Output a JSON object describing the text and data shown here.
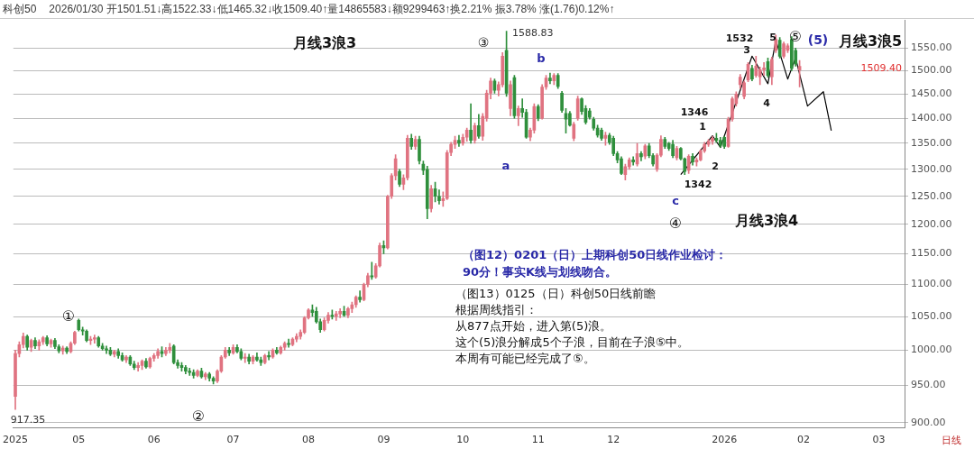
{
  "chart_data": {
    "type": "candlestick",
    "title": "科创50",
    "subtitle": "2026/01/30 开1501.51↓高1522.33↓低1465.32↓收1509.40↑量14865583↓额9299463↑换2.21% 振3.78% 涨(1.76)0.12%↑",
    "categories": [
      "2025",
      null,
      null,
      null,
      null,
      null,
      null,
      null,
      null,
      null,
      null,
      null,
      null,
      null,
      null,
      null,
      "05",
      null,
      null,
      null,
      null,
      null,
      null,
      null,
      null,
      null,
      null,
      null,
      null,
      null,
      null,
      null,
      null,
      null,
      null,
      "06",
      null,
      null,
      null,
      null,
      null,
      null,
      null,
      null,
      null,
      null,
      null,
      null,
      null,
      null,
      null,
      null,
      null,
      null,
      null,
      "07",
      null,
      null,
      null,
      null,
      null,
      null,
      null,
      null,
      null,
      null,
      null,
      null,
      null,
      null,
      null,
      null,
      null,
      null,
      "08",
      null,
      null,
      null,
      null,
      null,
      null,
      null,
      null,
      null,
      null,
      null,
      null,
      null,
      null,
      null,
      null,
      null,
      null,
      "09",
      null,
      null,
      null,
      null,
      null,
      null,
      null,
      null,
      null,
      null,
      null,
      null,
      null,
      null,
      null,
      null,
      null,
      null,
      null,
      "10",
      null,
      null,
      null,
      null,
      null,
      null,
      null,
      null,
      null,
      null,
      null,
      null,
      null,
      null,
      null,
      null,
      null,
      null,
      "11",
      null,
      null,
      null,
      null,
      null,
      null,
      null,
      null,
      null,
      null,
      null,
      null,
      null,
      null,
      null,
      null,
      null,
      null,
      "12",
      null,
      null,
      null,
      null,
      null,
      null,
      null,
      null,
      null,
      null,
      null,
      null,
      null,
      null,
      null,
      null,
      null,
      null,
      null,
      null,
      null,
      null,
      null,
      null,
      null,
      null,
      null,
      "2026",
      null,
      null,
      null,
      null,
      null,
      null,
      null,
      null,
      null,
      null,
      null,
      null,
      null,
      null,
      null,
      null,
      null,
      null,
      null,
      "02",
      null,
      null,
      null,
      null,
      null,
      null,
      null,
      null,
      null,
      null,
      null,
      null,
      null,
      null,
      null,
      null,
      null,
      null,
      "03",
      null,
      null,
      null,
      null,
      null,
      null
    ],
    "ohlc": [
      [
        935,
        1000,
        917.35,
        995
      ],
      [
        995,
        1012,
        990,
        1008
      ],
      [
        1008,
        1025,
        1003,
        1020
      ],
      [
        1020,
        1022,
        1000,
        1004
      ],
      [
        1004,
        1016,
        998,
        1014
      ],
      [
        1014,
        1018,
        1002,
        1006
      ],
      [
        1006,
        1015,
        1000,
        1012
      ],
      [
        1012,
        1020,
        1008,
        1018
      ],
      [
        1018,
        1021,
        1006,
        1009
      ],
      [
        1009,
        1016,
        1004,
        1014
      ],
      [
        1014,
        1017,
        1002,
        1005
      ],
      [
        1005,
        1008,
        996,
        999
      ],
      [
        999,
        1006,
        994,
        1003
      ],
      [
        1003,
        1005,
        995,
        998
      ],
      [
        998,
        1012,
        996,
        1010
      ],
      [
        1010,
        1028,
        1008,
        1026
      ],
      [
        1044,
        1046,
        1028,
        1030
      ],
      [
        1030,
        1034,
        1022,
        1028
      ],
      [
        1028,
        1030,
        1012,
        1014
      ],
      [
        1014,
        1020,
        1008,
        1016
      ],
      [
        1016,
        1022,
        1010,
        1018
      ],
      [
        1018,
        1020,
        1004,
        1006
      ],
      [
        1006,
        1010,
        1000,
        1002
      ],
      [
        1002,
        1006,
        995,
        1000
      ],
      [
        1000,
        1004,
        992,
        994
      ],
      [
        994,
        1000,
        990,
        998
      ],
      [
        998,
        1002,
        988,
        992
      ],
      [
        992,
        996,
        984,
        986
      ],
      [
        986,
        992,
        982,
        990
      ],
      [
        990,
        992,
        978,
        980
      ],
      [
        980,
        984,
        972,
        975
      ],
      [
        975,
        982,
        970,
        978
      ],
      [
        978,
        986,
        972,
        984
      ],
      [
        984,
        988,
        974,
        976
      ],
      [
        976,
        990,
        974,
        988
      ],
      [
        988,
        995,
        984,
        992
      ],
      [
        992,
        1002,
        988,
        998
      ],
      [
        998,
        1005,
        990,
        995
      ],
      [
        995,
        1004,
        992,
        1000
      ],
      [
        1000,
        1010,
        996,
        1004
      ],
      [
        1006,
        1008,
        980,
        982
      ],
      [
        982,
        986,
        974,
        978
      ],
      [
        978,
        982,
        970,
        975
      ],
      [
        975,
        978,
        966,
        970
      ],
      [
        970,
        974,
        964,
        968
      ],
      [
        968,
        972,
        960,
        964
      ],
      [
        964,
        972,
        962,
        970
      ],
      [
        970,
        974,
        960,
        962
      ],
      [
        962,
        968,
        958,
        966
      ],
      [
        966,
        968,
        956,
        960
      ],
      [
        960,
        962,
        952,
        956
      ],
      [
        956,
        972,
        954,
        970
      ],
      [
        970,
        992,
        968,
        990
      ],
      [
        990,
        1004,
        988,
        1000
      ],
      [
        1000,
        1004,
        992,
        996
      ],
      [
        996,
        1008,
        994,
        1004
      ],
      [
        1004,
        1008,
        996,
        998
      ],
      [
        998,
        1002,
        986,
        988
      ],
      [
        988,
        995,
        982,
        990
      ],
      [
        990,
        994,
        980,
        984
      ],
      [
        984,
        992,
        980,
        990
      ],
      [
        990,
        996,
        984,
        986
      ],
      [
        986,
        990,
        978,
        982
      ],
      [
        982,
        994,
        980,
        992
      ],
      [
        992,
        998,
        986,
        990
      ],
      [
        990,
        1002,
        988,
        1000
      ],
      [
        1000,
        1004,
        994,
        996
      ],
      [
        996,
        1006,
        994,
        1004
      ],
      [
        1004,
        1012,
        1000,
        1010
      ],
      [
        1010,
        1016,
        1004,
        1008
      ],
      [
        1008,
        1018,
        1006,
        1016
      ],
      [
        1016,
        1024,
        1012,
        1020
      ],
      [
        1020,
        1030,
        1016,
        1026
      ],
      [
        1026,
        1050,
        1024,
        1048
      ],
      [
        1048,
        1062,
        1046,
        1060
      ],
      [
        1060,
        1068,
        1050,
        1056
      ],
      [
        1058,
        1064,
        1040,
        1042
      ],
      [
        1042,
        1046,
        1026,
        1030
      ],
      [
        1030,
        1048,
        1028,
        1044
      ],
      [
        1044,
        1056,
        1040,
        1052
      ],
      [
        1052,
        1060,
        1046,
        1050
      ],
      [
        1050,
        1058,
        1044,
        1054
      ],
      [
        1054,
        1062,
        1048,
        1058
      ],
      [
        1058,
        1066,
        1050,
        1052
      ],
      [
        1052,
        1064,
        1048,
        1062
      ],
      [
        1062,
        1072,
        1056,
        1068
      ],
      [
        1068,
        1082,
        1064,
        1080
      ],
      [
        1080,
        1090,
        1072,
        1076
      ],
      [
        1076,
        1102,
        1074,
        1100
      ],
      [
        1100,
        1118,
        1096,
        1114
      ],
      [
        1114,
        1136,
        1108,
        1112
      ],
      [
        1112,
        1134,
        1110,
        1130
      ],
      [
        1130,
        1168,
        1128,
        1164
      ],
      [
        1164,
        1172,
        1150,
        1160
      ],
      [
        1160,
        1252,
        1158,
        1250
      ],
      [
        1250,
        1292,
        1246,
        1288
      ],
      [
        1288,
        1328,
        1280,
        1320
      ],
      [
        1296,
        1300,
        1268,
        1272
      ],
      [
        1272,
        1290,
        1262,
        1284
      ],
      [
        1284,
        1366,
        1280,
        1360
      ],
      [
        1360,
        1368,
        1338,
        1344
      ],
      [
        1344,
        1364,
        1338,
        1358
      ],
      [
        1358,
        1364,
        1310,
        1316
      ],
      [
        1310,
        1316,
        1290,
        1298
      ],
      [
        1300,
        1306,
        1210,
        1228
      ],
      [
        1228,
        1270,
        1222,
        1264
      ],
      [
        1264,
        1276,
        1240,
        1250
      ],
      [
        1250,
        1262,
        1236,
        1242
      ],
      [
        1242,
        1258,
        1232,
        1246
      ],
      [
        1246,
        1336,
        1244,
        1332
      ],
      [
        1332,
        1352,
        1326,
        1348
      ],
      [
        1348,
        1364,
        1340,
        1356
      ],
      [
        1356,
        1366,
        1344,
        1350
      ],
      [
        1350,
        1368,
        1346,
        1362
      ],
      [
        1362,
        1380,
        1354,
        1376
      ],
      [
        1376,
        1430,
        1350,
        1356
      ],
      [
        1356,
        1390,
        1350,
        1385
      ],
      [
        1385,
        1408,
        1360,
        1364
      ],
      [
        1364,
        1410,
        1356,
        1404
      ],
      [
        1400,
        1458,
        1394,
        1452
      ],
      [
        1452,
        1484,
        1440,
        1478
      ],
      [
        1478,
        1482,
        1452,
        1458
      ],
      [
        1458,
        1476,
        1446,
        1470
      ],
      [
        1470,
        1540,
        1465,
        1532
      ],
      [
        1545,
        1588.83,
        1445,
        1452
      ],
      [
        1420,
        1478,
        1405,
        1470
      ],
      [
        1485,
        1490,
        1400,
        1405
      ],
      [
        1405,
        1425,
        1385,
        1420
      ],
      [
        1420,
        1440,
        1402,
        1412
      ],
      [
        1412,
        1418,
        1360,
        1362
      ],
      [
        1362,
        1380,
        1355,
        1376
      ],
      [
        1376,
        1430,
        1370,
        1424
      ],
      [
        1424,
        1428,
        1395,
        1400
      ],
      [
        1400,
        1470,
        1398,
        1465
      ],
      [
        1465,
        1490,
        1460,
        1484
      ],
      [
        1484,
        1495,
        1472,
        1478
      ],
      [
        1478,
        1494,
        1470,
        1490
      ],
      [
        1490,
        1494,
        1462,
        1466
      ],
      [
        1452,
        1456,
        1412,
        1416
      ],
      [
        1410,
        1420,
        1370,
        1398
      ],
      [
        1410,
        1414,
        1384,
        1386
      ],
      [
        1360,
        1392,
        1355,
        1388
      ],
      [
        1400,
        1446,
        1396,
        1440
      ],
      [
        1440,
        1442,
        1408,
        1414
      ],
      [
        1420,
        1426,
        1388,
        1392
      ],
      [
        1415,
        1420,
        1398,
        1402
      ],
      [
        1398,
        1402,
        1376,
        1380
      ],
      [
        1380,
        1386,
        1362,
        1366
      ],
      [
        1376,
        1380,
        1356,
        1360
      ],
      [
        1360,
        1372,
        1346,
        1366
      ],
      [
        1366,
        1370,
        1348,
        1352
      ],
      [
        1360,
        1364,
        1326,
        1330
      ],
      [
        1330,
        1334,
        1312,
        1318
      ],
      [
        1320,
        1324,
        1290,
        1292
      ],
      [
        1290,
        1310,
        1280,
        1305
      ],
      [
        1305,
        1322,
        1300,
        1318
      ],
      [
        1318,
        1324,
        1308,
        1314
      ],
      [
        1310,
        1350,
        1306,
        1330
      ],
      [
        1330,
        1334,
        1316,
        1324
      ],
      [
        1325,
        1348,
        1320,
        1345
      ],
      [
        1345,
        1350,
        1322,
        1326
      ],
      [
        1326,
        1330,
        1306,
        1310
      ],
      [
        1300,
        1330,
        1296,
        1327
      ],
      [
        1327,
        1365,
        1324,
        1358
      ],
      [
        1358,
        1362,
        1340,
        1344
      ],
      [
        1350,
        1352,
        1336,
        1340
      ],
      [
        1348,
        1356,
        1322,
        1326
      ],
      [
        1322,
        1344,
        1318,
        1340
      ],
      [
        1340,
        1342,
        1318,
        1320
      ],
      [
        1320,
        1322,
        1290,
        1296
      ],
      [
        1298,
        1328,
        1292,
        1325
      ],
      [
        1325,
        1330,
        1308,
        1314
      ],
      [
        1314,
        1322,
        1306,
        1318
      ],
      [
        1318,
        1338,
        1316,
        1335
      ],
      [
        1335,
        1352,
        1332,
        1348
      ],
      [
        1348,
        1358,
        1344,
        1354
      ],
      [
        1354,
        1364,
        1348,
        1360
      ],
      [
        1360,
        1370,
        1352,
        1356
      ],
      [
        1356,
        1362,
        1342,
        1346
      ],
      [
        1362,
        1364,
        1340,
        1344
      ],
      [
        1344,
        1402,
        1342,
        1398
      ],
      [
        1398,
        1444,
        1394,
        1440
      ],
      [
        1430,
        1455,
        1425,
        1450
      ],
      [
        1470,
        1492,
        1462,
        1486
      ],
      [
        1445,
        1478,
        1440,
        1474
      ],
      [
        1480,
        1518,
        1476,
        1514
      ],
      [
        1505,
        1512,
        1478,
        1482
      ],
      [
        1490,
        1532,
        1486,
        1510
      ],
      [
        1487,
        1508,
        1470,
        1502
      ],
      [
        1502,
        1518,
        1490,
        1506
      ],
      [
        1520,
        1528,
        1486,
        1490
      ],
      [
        1487,
        1530,
        1470,
        1525
      ],
      [
        1545,
        1580,
        1540,
        1570
      ],
      [
        1568,
        1574,
        1528,
        1532
      ],
      [
        1532,
        1564,
        1528,
        1560
      ],
      [
        1545,
        1560,
        1540,
        1555
      ],
      [
        1570,
        1576,
        1500,
        1505
      ],
      [
        1545,
        1550,
        1510,
        1515
      ],
      [
        1501.51,
        1522.33,
        1465.32,
        1509.4
      ],
      null,
      null,
      null,
      null,
      null,
      null,
      null,
      null,
      null,
      null,
      null,
      null,
      null,
      null,
      null,
      null,
      null,
      null,
      null,
      null,
      null,
      null,
      null,
      null,
      null,
      null
    ],
    "series": [
      {
        "type": "line",
        "color": "#000000",
        "values": [
          null,
          null,
          null,
          null,
          null,
          null,
          null,
          null,
          null,
          null,
          null,
          null,
          null,
          null,
          null,
          null,
          null,
          null,
          null,
          null,
          null,
          null,
          null,
          null,
          null,
          null,
          null,
          null,
          null,
          null,
          null,
          null,
          null,
          null,
          null,
          null,
          null,
          null,
          null,
          null,
          null,
          null,
          null,
          null,
          null,
          null,
          null,
          null,
          null,
          null,
          null,
          null,
          null,
          null,
          null,
          null,
          null,
          null,
          null,
          null,
          null,
          null,
          null,
          null,
          null,
          null,
          null,
          null,
          null,
          null,
          null,
          null,
          null,
          null,
          null,
          null,
          null,
          null,
          null,
          null,
          null,
          null,
          null,
          null,
          null,
          null,
          null,
          null,
          null,
          null,
          null,
          null,
          null,
          null,
          null,
          null,
          null,
          null,
          null,
          null,
          null,
          null,
          null,
          null,
          null,
          null,
          null,
          null,
          null,
          null,
          null,
          null,
          null,
          null,
          null,
          null,
          null,
          null,
          null,
          null,
          null,
          null,
          null,
          null,
          null,
          null,
          null,
          null,
          null,
          null,
          null,
          null,
          null,
          null,
          null,
          null,
          null,
          null,
          null,
          null,
          null,
          null,
          null,
          null,
          null,
          null,
          null,
          null,
          null,
          null,
          null,
          null,
          null,
          null,
          null,
          null,
          null,
          null,
          null,
          null,
          null,
          null,
          null,
          null,
          null,
          null,
          null,
          null,
          1290,
          null,
          null,
          null,
          null,
          null,
          null,
          null,
          1365,
          null,
          1342,
          null,
          null,
          null,
          null,
          null,
          null,
          null,
          1532,
          null,
          null,
          null,
          1472,
          null,
          1568,
          null,
          null,
          1482,
          null,
          1528,
          null,
          null,
          1425,
          null,
          null,
          null,
          1455,
          null,
          1375,
          null,
          null,
          null,
          null,
          null,
          null,
          null,
          null,
          null,
          null,
          null,
          null,
          null,
          null,
          null,
          null,
          null,
          null
        ]
      }
    ],
    "ylim": [
      893,
      1615
    ],
    "yticks": [
      {
        "value": 900,
        "label": "900.00"
      },
      {
        "value": 950,
        "label": "950.00"
      },
      {
        "value": 1000,
        "label": "1000.00"
      },
      {
        "value": 1050,
        "label": "1050.00"
      },
      {
        "value": 1100,
        "label": "1100.00"
      },
      {
        "value": 1150,
        "label": "1150.00"
      },
      {
        "value": 1200,
        "label": "1200.00"
      },
      {
        "value": 1250,
        "label": "1250.00"
      },
      {
        "value": 1300,
        "label": "1300.00"
      },
      {
        "value": 1350,
        "label": "1350.00"
      },
      {
        "value": 1400,
        "label": "1400.00"
      },
      {
        "value": 1450,
        "label": "1450.00"
      },
      {
        "value": 1500,
        "label": "1500.00"
      },
      {
        "value": 1550,
        "label": "1550.00"
      }
    ],
    "log": "y",
    "grid": "y",
    "annotations": [
      "月线3浪3",
      "③",
      "1588.83",
      "b",
      "a",
      "c",
      "④",
      "月线3浪4",
      "1346",
      "1",
      "2",
      "1342",
      "1532",
      "3",
      "4",
      "5",
      "⑤",
      "(5)",
      "月线3浪5",
      "①",
      "②",
      "917.35",
      "（图12）0201（日）上期科创50日线作业检讨：",
      "90分！事实K线与划线吻合。",
      "（图13）0125（日）科创50日线前瞻",
      "根据周线指引：",
      "从877点开始，进入第(5)浪。",
      "这个(5)浪分解成5个子浪，目前在子浪⑤中。",
      "本周有可能已经完成了⑤。",
      "日线",
      "1509.40"
    ]
  }
}
